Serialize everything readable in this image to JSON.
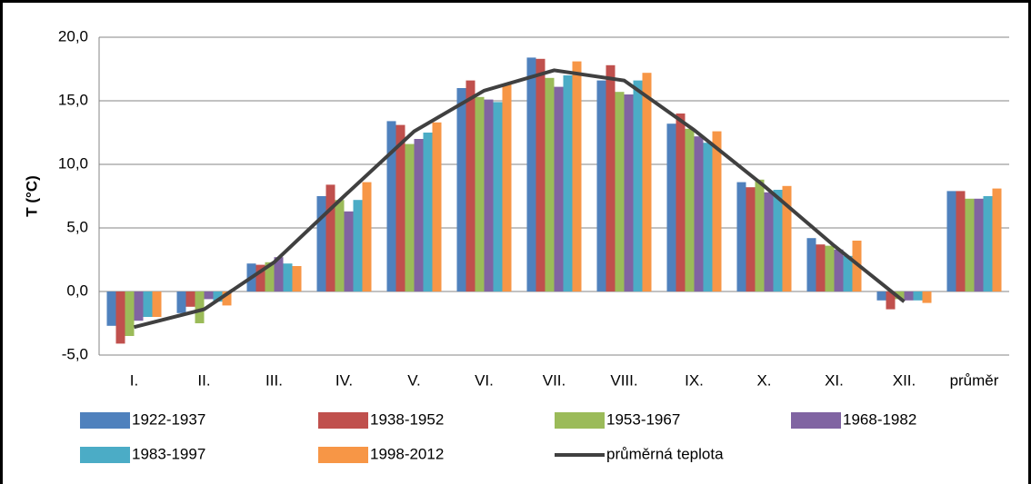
{
  "chart_data": {
    "type": "bar",
    "ylabel": "T (°C)",
    "categories": [
      "I.",
      "II.",
      "III.",
      "IV.",
      "V.",
      "VI.",
      "VII.",
      "VIII.",
      "IX.",
      "X.",
      "XI.",
      "XII.",
      "průměr"
    ],
    "ylim": [
      -5,
      20
    ],
    "yticks": [
      {
        "value": -5,
        "label": "-5,0"
      },
      {
        "value": 0,
        "label": "0,0"
      },
      {
        "value": 5,
        "label": "5,0"
      },
      {
        "value": 10,
        "label": "10,0"
      },
      {
        "value": 15,
        "label": "15,0"
      },
      {
        "value": 20,
        "label": "20,0"
      }
    ],
    "grid": true,
    "series": [
      {
        "name": "1922-1937",
        "color": "#4f81bd",
        "values": [
          -2.7,
          -1.7,
          2.2,
          7.5,
          13.4,
          16.0,
          18.4,
          16.6,
          13.2,
          8.6,
          4.2,
          -0.7,
          7.9
        ]
      },
      {
        "name": "1938-1952",
        "color": "#c0504d",
        "values": [
          -4.1,
          -1.2,
          2.1,
          8.4,
          13.1,
          16.6,
          18.3,
          17.8,
          14.0,
          8.2,
          3.7,
          -1.4,
          7.9
        ]
      },
      {
        "name": "1953-1967",
        "color": "#9bbb59",
        "values": [
          -3.5,
          -2.5,
          2.3,
          7.2,
          11.6,
          15.3,
          16.8,
          15.7,
          12.8,
          8.8,
          3.6,
          -0.6,
          7.3
        ]
      },
      {
        "name": "1968-1982",
        "color": "#8064a2",
        "values": [
          -2.3,
          -0.6,
          2.7,
          6.3,
          12.0,
          15.1,
          16.1,
          15.5,
          12.2,
          7.8,
          3.3,
          -0.7,
          7.3
        ]
      },
      {
        "name": "1983-1997",
        "color": "#4bacc6",
        "values": [
          -2.0,
          -0.8,
          2.2,
          7.2,
          12.5,
          14.9,
          17.0,
          16.6,
          11.7,
          8.0,
          2.8,
          -0.7,
          7.5
        ]
      },
      {
        "name": "1998-2012",
        "color": "#f79646",
        "values": [
          -2.0,
          -1.1,
          2.0,
          8.6,
          13.3,
          16.3,
          18.1,
          17.2,
          12.6,
          8.3,
          4.0,
          -0.9,
          8.1
        ]
      },
      {
        "name": "průměrná teplota",
        "type": "line",
        "color": "#404040",
        "values": [
          -2.8,
          -1.4,
          2.3,
          7.5,
          12.6,
          15.8,
          17.4,
          16.6,
          12.7,
          8.3,
          3.6,
          -0.8,
          null
        ]
      }
    ]
  }
}
